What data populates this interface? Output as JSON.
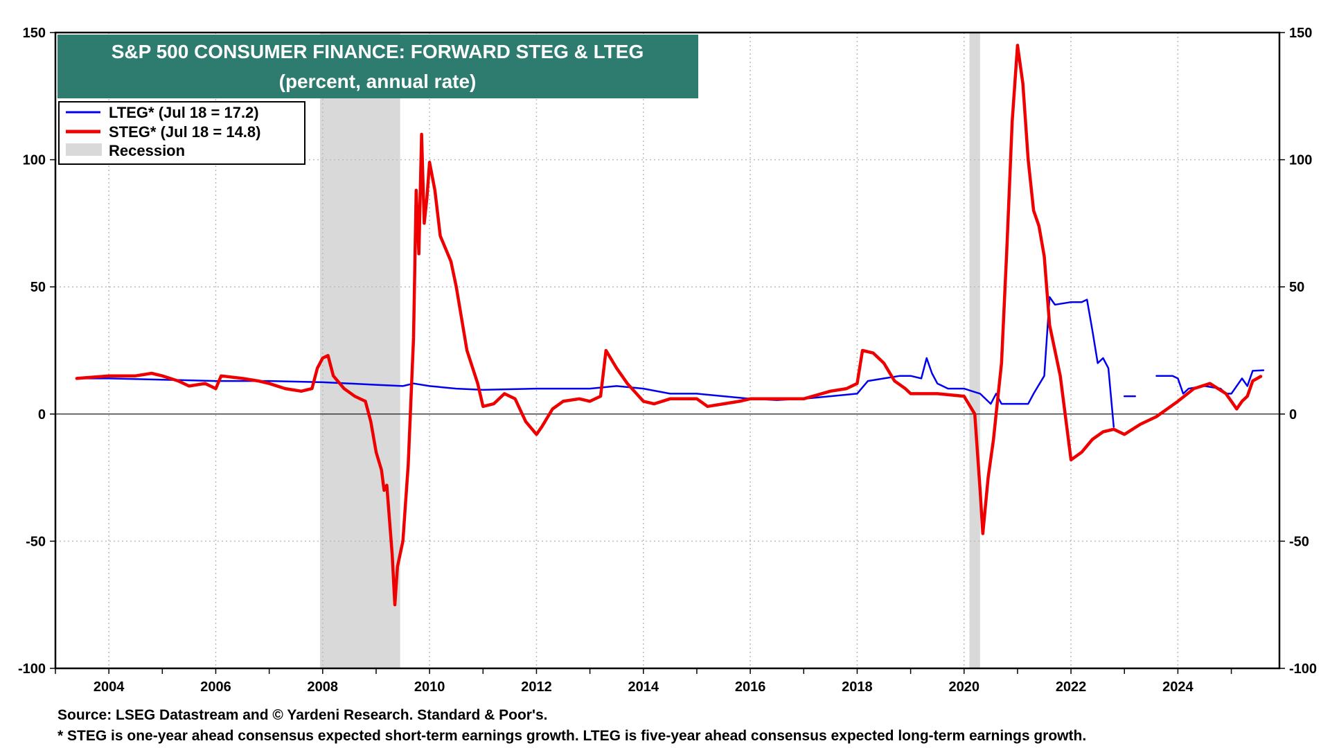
{
  "chart_data": {
    "type": "line",
    "title": "S&P 500 CONSUMER FINANCE: FORWARD STEG & LTEG",
    "subtitle": "(percent, annual rate)",
    "xlabel": "",
    "ylabel": "",
    "xlim": [
      2003.0,
      2025.9
    ],
    "ylim": [
      -100,
      150
    ],
    "x_ticks": [
      2004,
      2006,
      2008,
      2010,
      2012,
      2014,
      2016,
      2018,
      2020,
      2022,
      2024
    ],
    "y_ticks": [
      150,
      100,
      50,
      0,
      -50,
      -100
    ],
    "grid": true,
    "legend_position": "top-left",
    "legend": [
      {
        "label": "LTEG* (Jul 18 = 17.2)",
        "color": "#0000ee",
        "kind": "line"
      },
      {
        "label": "STEG* (Jul 18 = 14.8)",
        "color": "#ee0000",
        "kind": "line"
      },
      {
        "label": "Recession",
        "color": "#d9d9d9",
        "kind": "area"
      }
    ],
    "recessions": [
      [
        2007.95,
        2009.45
      ],
      [
        2020.1,
        2020.3
      ]
    ],
    "series": [
      {
        "name": "LTEG*",
        "color": "#0000ee",
        "segments": [
          [
            [
              2003.4,
              14
            ],
            [
              2004.0,
              14
            ],
            [
              2005.0,
              13.5
            ],
            [
              2006.0,
              13
            ],
            [
              2007.0,
              13
            ],
            [
              2008.0,
              12.5
            ],
            [
              2008.5,
              12
            ],
            [
              2009.0,
              11.5
            ],
            [
              2009.5,
              11
            ],
            [
              2009.7,
              12
            ],
            [
              2010.0,
              11
            ],
            [
              2010.5,
              10
            ],
            [
              2011.0,
              9.5
            ],
            [
              2012.0,
              10
            ],
            [
              2013.0,
              10
            ],
            [
              2013.5,
              11
            ],
            [
              2014.0,
              10
            ],
            [
              2014.5,
              8
            ],
            [
              2015.0,
              8
            ],
            [
              2015.5,
              7
            ],
            [
              2016.0,
              6
            ],
            [
              2016.5,
              5.5
            ],
            [
              2017.0,
              6
            ],
            [
              2017.5,
              7
            ],
            [
              2018.0,
              8
            ],
            [
              2018.2,
              13
            ],
            [
              2018.5,
              14
            ],
            [
              2018.8,
              15
            ],
            [
              2019.0,
              15
            ],
            [
              2019.2,
              14
            ],
            [
              2019.3,
              22
            ],
            [
              2019.4,
              16
            ],
            [
              2019.5,
              12
            ],
            [
              2019.7,
              10
            ],
            [
              2020.0,
              10
            ],
            [
              2020.3,
              8
            ],
            [
              2020.5,
              4
            ],
            [
              2020.6,
              8
            ],
            [
              2020.7,
              4
            ],
            [
              2021.0,
              4
            ],
            [
              2021.2,
              4
            ],
            [
              2021.3,
              8
            ],
            [
              2021.5,
              15
            ],
            [
              2021.6,
              46
            ],
            [
              2021.7,
              43
            ],
            [
              2022.0,
              44
            ],
            [
              2022.2,
              44
            ],
            [
              2022.3,
              45
            ],
            [
              2022.4,
              33
            ],
            [
              2022.5,
              20
            ],
            [
              2022.6,
              22
            ],
            [
              2022.7,
              18
            ],
            [
              2022.8,
              -5
            ]
          ],
          [
            [
              2023.0,
              7
            ],
            [
              2023.2,
              7
            ]
          ],
          [
            [
              2023.6,
              15
            ],
            [
              2023.9,
              15
            ],
            [
              2024.0,
              14
            ],
            [
              2024.1,
              8
            ],
            [
              2024.2,
              10
            ],
            [
              2024.5,
              11
            ],
            [
              2024.8,
              10
            ],
            [
              2024.9,
              8
            ],
            [
              2025.0,
              8
            ],
            [
              2025.2,
              14
            ],
            [
              2025.3,
              11
            ],
            [
              2025.4,
              17
            ],
            [
              2025.6,
              17.2
            ]
          ]
        ]
      },
      {
        "name": "STEG*",
        "color": "#ee0000",
        "segments": [
          [
            [
              2003.4,
              14
            ],
            [
              2004.0,
              15
            ],
            [
              2004.5,
              15
            ],
            [
              2004.8,
              16
            ],
            [
              2005.0,
              15
            ],
            [
              2005.3,
              13
            ],
            [
              2005.5,
              11
            ],
            [
              2005.8,
              12
            ],
            [
              2006.0,
              10
            ],
            [
              2006.1,
              15
            ],
            [
              2006.5,
              14
            ],
            [
              2006.8,
              13
            ],
            [
              2007.0,
              12
            ],
            [
              2007.3,
              10
            ],
            [
              2007.6,
              9
            ],
            [
              2007.8,
              10
            ],
            [
              2007.9,
              18
            ],
            [
              2008.0,
              22
            ],
            [
              2008.1,
              23
            ],
            [
              2008.2,
              15
            ],
            [
              2008.4,
              10
            ],
            [
              2008.6,
              7
            ],
            [
              2008.8,
              5
            ],
            [
              2008.9,
              -3
            ],
            [
              2009.0,
              -15
            ],
            [
              2009.1,
              -22
            ],
            [
              2009.15,
              -30
            ],
            [
              2009.2,
              -28
            ],
            [
              2009.3,
              -55
            ],
            [
              2009.35,
              -75
            ],
            [
              2009.4,
              -60
            ],
            [
              2009.5,
              -50
            ],
            [
              2009.6,
              -20
            ],
            [
              2009.7,
              30
            ],
            [
              2009.75,
              88
            ],
            [
              2009.8,
              63
            ],
            [
              2009.85,
              110
            ],
            [
              2009.9,
              75
            ],
            [
              2009.95,
              85
            ],
            [
              2010.0,
              99
            ],
            [
              2010.1,
              88
            ],
            [
              2010.2,
              70
            ],
            [
              2010.3,
              65
            ],
            [
              2010.4,
              60
            ],
            [
              2010.5,
              50
            ],
            [
              2010.7,
              25
            ],
            [
              2010.9,
              12
            ],
            [
              2011.0,
              3
            ],
            [
              2011.2,
              4
            ],
            [
              2011.4,
              8
            ],
            [
              2011.6,
              6
            ],
            [
              2011.8,
              -3
            ],
            [
              2012.0,
              -8
            ],
            [
              2012.1,
              -5
            ],
            [
              2012.3,
              2
            ],
            [
              2012.5,
              5
            ],
            [
              2012.8,
              6
            ],
            [
              2013.0,
              5
            ],
            [
              2013.2,
              7
            ],
            [
              2013.3,
              25
            ],
            [
              2013.5,
              18
            ],
            [
              2013.7,
              12
            ],
            [
              2014.0,
              5
            ],
            [
              2014.2,
              4
            ],
            [
              2014.5,
              6
            ],
            [
              2015.0,
              6
            ],
            [
              2015.2,
              3
            ],
            [
              2015.5,
              4
            ],
            [
              2015.8,
              5
            ],
            [
              2016.0,
              6
            ],
            [
              2016.5,
              6
            ],
            [
              2017.0,
              6
            ],
            [
              2017.5,
              9
            ],
            [
              2017.8,
              10
            ],
            [
              2018.0,
              12
            ],
            [
              2018.1,
              25
            ],
            [
              2018.3,
              24
            ],
            [
              2018.5,
              20
            ],
            [
              2018.7,
              13
            ],
            [
              2018.9,
              10
            ],
            [
              2019.0,
              8
            ],
            [
              2019.5,
              8
            ],
            [
              2020.0,
              7
            ],
            [
              2020.2,
              0
            ],
            [
              2020.3,
              -30
            ],
            [
              2020.35,
              -47
            ],
            [
              2020.45,
              -25
            ],
            [
              2020.55,
              -10
            ],
            [
              2020.6,
              0
            ],
            [
              2020.7,
              20
            ],
            [
              2020.8,
              65
            ],
            [
              2020.9,
              115
            ],
            [
              2021.0,
              145
            ],
            [
              2021.1,
              130
            ],
            [
              2021.2,
              100
            ],
            [
              2021.3,
              80
            ],
            [
              2021.4,
              74
            ],
            [
              2021.5,
              62
            ],
            [
              2021.6,
              35
            ],
            [
              2021.8,
              15
            ],
            [
              2022.0,
              -18
            ],
            [
              2022.2,
              -15
            ],
            [
              2022.4,
              -10
            ],
            [
              2022.6,
              -7
            ],
            [
              2022.8,
              -6
            ],
            [
              2023.0,
              -8
            ],
            [
              2023.3,
              -4
            ],
            [
              2023.6,
              -1
            ],
            [
              2024.0,
              5
            ],
            [
              2024.3,
              10
            ],
            [
              2024.6,
              12
            ],
            [
              2024.9,
              8
            ],
            [
              2025.0,
              5
            ],
            [
              2025.1,
              2
            ],
            [
              2025.2,
              5
            ],
            [
              2025.3,
              7
            ],
            [
              2025.4,
              13
            ],
            [
              2025.55,
              14.8
            ]
          ]
        ]
      }
    ]
  },
  "source_note": "Source: LSEG Datastream and © Yardeni Research. Standard & Poor's.",
  "footnote": "* STEG is one-year ahead consensus expected short-term earnings growth. LTEG is five-year ahead consensus expected long-term earnings growth.",
  "colors": {
    "title_bg": "#2e7b70",
    "grid": "#bbbbbb",
    "axis": "#000000"
  }
}
